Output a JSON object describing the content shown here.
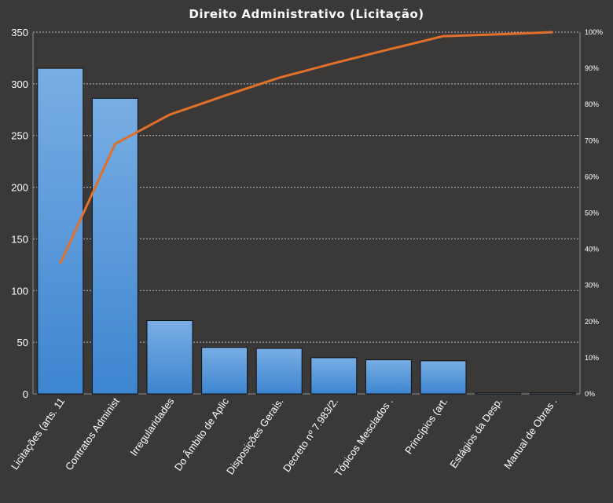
{
  "chart_data": {
    "type": "bar",
    "title": "Direito  Administrativo  (Licitação)",
    "categories": [
      "Licitações (arts. 11",
      "Contratos Administ",
      "Irregularidades",
      "Do Âmbito de Aplic",
      "Disposições Gerais.",
      "Decreto nº 7.983/2.",
      "Tópicos Mesclados .",
      "Princípios (art.",
      "Estágios da Desp.",
      "Manual de Obras ."
    ],
    "series": [
      {
        "type": "bar",
        "axis": "left",
        "values": [
          315,
          286,
          71,
          45,
          44,
          35,
          33,
          32,
          1,
          1
        ]
      },
      {
        "type": "line",
        "axis": "right",
        "values": [
          36.1,
          69.1,
          77.2,
          82.4,
          87.4,
          91.4,
          95.2,
          98.9,
          99.4,
          100
        ]
      }
    ],
    "ylim": [
      0,
      350
    ],
    "yticks": [
      "0",
      "50",
      "100",
      "150",
      "200",
      "250",
      "300",
      "350"
    ],
    "y2lim": [
      0,
      100
    ],
    "y2ticks": [
      "0%",
      "10%",
      "20%",
      "30%",
      "40%",
      "50%",
      "60%",
      "70%",
      "80%",
      "90%",
      "100%"
    ],
    "grid": true,
    "legend": "none",
    "colors": {
      "background": "#3a3938",
      "bar_top": "#79aee4",
      "bar_bottom": "#3d85d0",
      "line": "#e0702a",
      "grid": "#bdbdbd",
      "text": "#ffffff"
    }
  }
}
